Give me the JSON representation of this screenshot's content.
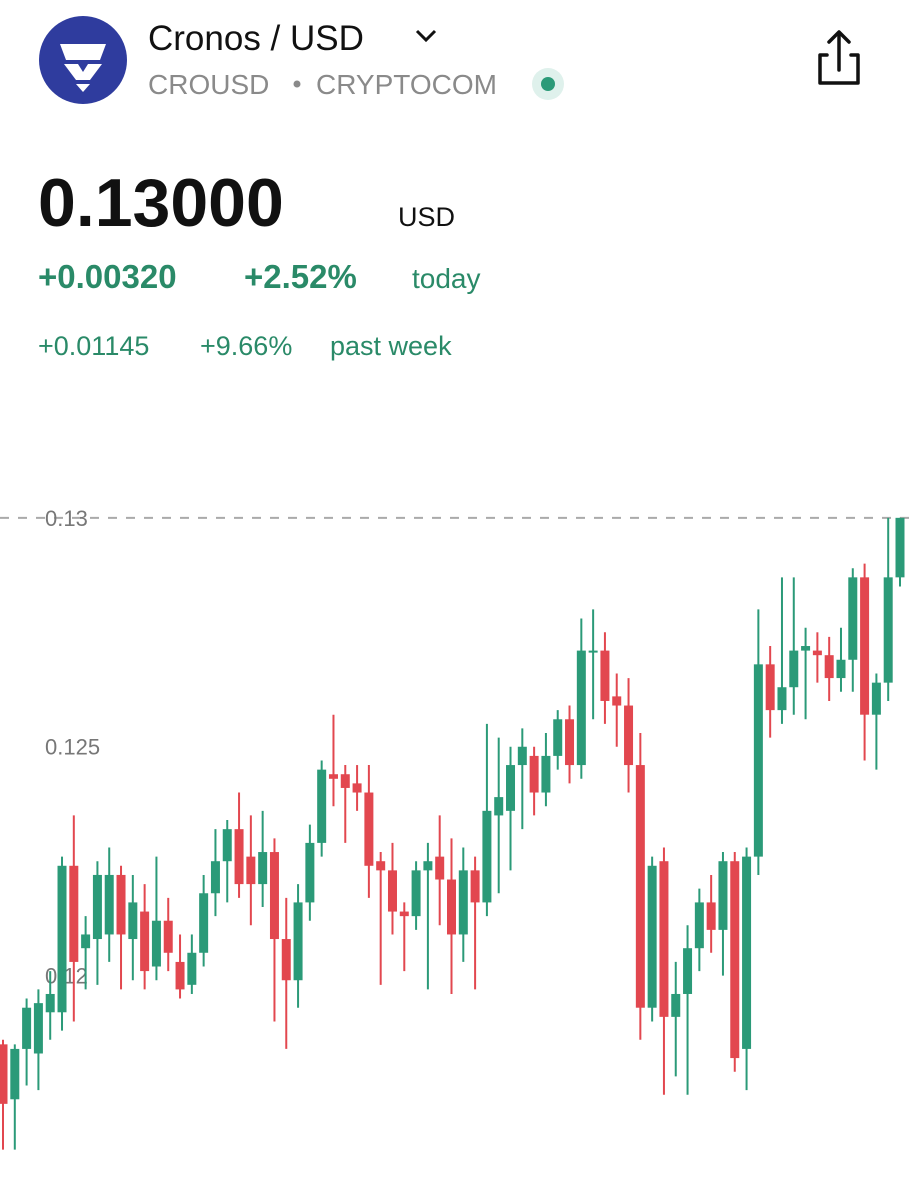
{
  "header": {
    "name": "Cronos / USD",
    "ticker": "CROUSD",
    "exchange": "CRYPTOCOM"
  },
  "quote": {
    "price": "0.13000",
    "currency": "USD",
    "day_change": "+0.00320",
    "day_percent": "+2.52%",
    "day_period": "today",
    "week_change": "+0.01145",
    "week_percent": "+9.66%",
    "week_period": "past week"
  },
  "chart_data": {
    "type": "candlestick",
    "up_color": "#2b9a78",
    "down_color": "#e2474f",
    "ylim": [
      0.1151,
      0.1317
    ],
    "yticks": [
      0.12,
      0.125,
      0.13
    ],
    "open": [
      0.1185,
      0.1173,
      0.1184,
      0.1183,
      0.1192,
      0.1192,
      0.1224,
      0.1206,
      0.1208,
      0.1209,
      0.1222,
      0.1208,
      0.1214,
      0.1202,
      0.1212,
      0.1203,
      0.1198,
      0.1205,
      0.1218,
      0.1225,
      0.1232,
      0.1226,
      0.122,
      0.1227,
      0.1208,
      0.1199,
      0.1216,
      0.1229,
      0.1244,
      0.1244,
      0.1242,
      0.124,
      0.1225,
      0.1223,
      0.1214,
      0.1213,
      0.1223,
      0.1226,
      0.1221,
      0.1209,
      0.1223,
      0.1216,
      0.1235,
      0.1236,
      0.1246,
      0.1248,
      0.124,
      0.1248,
      0.1256,
      0.1246,
      0.1271,
      0.1271,
      0.1261,
      0.1259,
      0.1246,
      0.1193,
      0.1225,
      0.1191,
      0.1196,
      0.1206,
      0.1216,
      0.121,
      0.1225,
      0.1184,
      0.1226,
      0.1268,
      0.1258,
      0.1263,
      0.1271,
      0.1271,
      0.127,
      0.1265,
      0.1269,
      0.1287,
      0.1257,
      0.1264,
      0.1287
    ],
    "high": [
      0.1186,
      0.1185,
      0.1195,
      0.1197,
      0.1201,
      0.1226,
      0.1235,
      0.1213,
      0.1225,
      0.1228,
      0.1224,
      0.1222,
      0.122,
      0.1226,
      0.1217,
      0.1209,
      0.1209,
      0.1222,
      0.1232,
      0.1234,
      0.124,
      0.1235,
      0.1236,
      0.123,
      0.1217,
      0.122,
      0.1233,
      0.1247,
      0.1257,
      0.1246,
      0.1246,
      0.1246,
      0.1227,
      0.1229,
      0.1216,
      0.1225,
      0.1229,
      0.1235,
      0.123,
      0.1228,
      0.1226,
      0.1255,
      0.1252,
      0.125,
      0.1254,
      0.125,
      0.1253,
      0.1258,
      0.1259,
      0.1278,
      0.128,
      0.1275,
      0.1266,
      0.1265,
      0.1253,
      0.1226,
      0.1228,
      0.1203,
      0.1211,
      0.1219,
      0.1222,
      0.1227,
      0.1227,
      0.1228,
      0.128,
      0.1272,
      0.1287,
      0.1287,
      0.1276,
      0.1275,
      0.1274,
      0.1276,
      0.1289,
      0.129,
      0.1266,
      0.13,
      0.13
    ],
    "low": [
      0.1162,
      0.1162,
      0.1176,
      0.1175,
      0.1186,
      0.1188,
      0.119,
      0.1197,
      0.1198,
      0.1203,
      0.1197,
      0.1199,
      0.1197,
      0.1199,
      0.1201,
      0.1195,
      0.1196,
      0.1202,
      0.1213,
      0.1216,
      0.1217,
      0.1211,
      0.1215,
      0.119,
      0.1184,
      0.1193,
      0.1212,
      0.1226,
      0.1237,
      0.1229,
      0.1236,
      0.1217,
      0.1198,
      0.1209,
      0.1201,
      0.121,
      0.1197,
      0.1211,
      0.1196,
      0.1203,
      0.1197,
      0.1213,
      0.1218,
      0.1223,
      0.1232,
      0.1235,
      0.1237,
      0.1245,
      0.1242,
      0.1243,
      0.1256,
      0.1255,
      0.125,
      0.124,
      0.1186,
      0.119,
      0.1174,
      0.1178,
      0.1174,
      0.1201,
      0.1205,
      0.12,
      0.1179,
      0.1175,
      0.1222,
      0.1252,
      0.1255,
      0.1257,
      0.1256,
      0.1264,
      0.126,
      0.1262,
      0.1262,
      0.1247,
      0.1245,
      0.126,
      0.1285
    ],
    "close": [
      0.1172,
      0.1184,
      0.1193,
      0.1194,
      0.1196,
      0.1224,
      0.1203,
      0.1209,
      0.1222,
      0.1222,
      0.1209,
      0.1216,
      0.1201,
      0.1212,
      0.1205,
      0.1197,
      0.1205,
      0.1218,
      0.1225,
      0.1232,
      0.122,
      0.122,
      0.1227,
      0.1208,
      0.1199,
      0.1216,
      0.1229,
      0.1245,
      0.1243,
      0.1241,
      0.124,
      0.1224,
      0.1223,
      0.1214,
      0.1213,
      0.1223,
      0.1225,
      0.1221,
      0.1209,
      0.1223,
      0.1216,
      0.1236,
      0.1239,
      0.1246,
      0.125,
      0.124,
      0.1248,
      0.1256,
      0.1246,
      0.1271,
      0.1271,
      0.126,
      0.1259,
      0.1246,
      0.1193,
      0.1224,
      0.1191,
      0.1196,
      0.1206,
      0.1216,
      0.121,
      0.1225,
      0.1182,
      0.1226,
      0.1268,
      0.1258,
      0.1263,
      0.1271,
      0.1272,
      0.127,
      0.1265,
      0.1269,
      0.1287,
      0.1257,
      0.1264,
      0.1287,
      0.13
    ]
  }
}
